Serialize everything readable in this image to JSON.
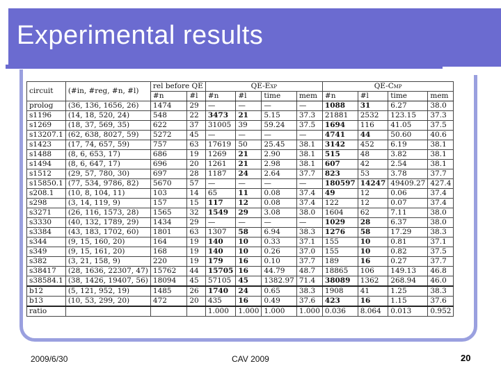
{
  "slide": {
    "title": "Experimental results",
    "date": "2009/6/30",
    "event": "CAV 2009",
    "page": "20"
  },
  "table": {
    "group_headers": [
      "circuit",
      "(#in, #reg, #n, #l)",
      "rel before QE",
      "QE-Exp",
      "QE-Cmp"
    ],
    "sub_headers": [
      "#n",
      "#l",
      "#n",
      "#l",
      "time",
      "mem",
      "#n",
      "#l",
      "time",
      "mem"
    ],
    "rows": [
      {
        "cells": [
          "prolog",
          "(36, 136, 1656, 26)",
          "1474",
          "29",
          "—",
          "—",
          "—",
          "—",
          "1088",
          "31",
          "6.27",
          "38.0"
        ],
        "bold": [
          8,
          9
        ]
      },
      {
        "cells": [
          "s1196",
          "(14, 18, 520, 24)",
          "548",
          "22",
          "3473",
          "21",
          "5.15",
          "37.3",
          "21881",
          "2532",
          "123.15",
          "37.3"
        ],
        "bold": [
          4,
          5
        ]
      },
      {
        "cells": [
          "s1269",
          "(18, 37, 569, 35)",
          "622",
          "37",
          "31005",
          "39",
          "59.24",
          "37.5",
          "1694",
          "116",
          "41.05",
          "37.5"
        ],
        "bold": [
          8
        ]
      },
      {
        "cells": [
          "s13207.1",
          "(62, 638, 8027, 59)",
          "5272",
          "45",
          "—",
          "—",
          "—",
          "—",
          "4741",
          "44",
          "50.60",
          "40.6"
        ],
        "bold": [
          8,
          9
        ]
      },
      {
        "cells": [
          "s1423",
          "(17, 74, 657, 59)",
          "757",
          "63",
          "17619",
          "50",
          "25.45",
          "38.1",
          "3142",
          "452",
          "6.19",
          "38.1"
        ],
        "bold": [
          8
        ]
      },
      {
        "cells": [
          "s1488",
          "(8, 6, 653, 17)",
          "686",
          "19",
          "1269",
          "21",
          "2.90",
          "38.1",
          "515",
          "48",
          "3.82",
          "38.1"
        ],
        "bold": [
          5,
          8
        ]
      },
      {
        "cells": [
          "s1494",
          "(8, 6, 647, 17)",
          "696",
          "20",
          "1261",
          "21",
          "2.98",
          "38.1",
          "607",
          "42",
          "2.54",
          "38.1"
        ],
        "bold": [
          5,
          8
        ]
      },
      {
        "cells": [
          "s1512",
          "(29, 57, 780, 30)",
          "697",
          "28",
          "1187",
          "24",
          "2.64",
          "37.7",
          "823",
          "53",
          "3.78",
          "37.7"
        ],
        "bold": [
          5,
          8
        ]
      },
      {
        "cells": [
          "s15850.1",
          "(77, 534, 9786, 82)",
          "5670",
          "57",
          "—",
          "—",
          "—",
          "—",
          "180597",
          "14247",
          "49409.27",
          "427.4"
        ],
        "bold": [
          8,
          9
        ]
      },
      {
        "cells": [
          "s208.1",
          "(10, 8, 104, 11)",
          "103",
          "14",
          "65",
          "11",
          "0.08",
          "37.4",
          "49",
          "12",
          "0.06",
          "37.4"
        ],
        "bold": [
          5,
          8
        ]
      },
      {
        "cells": [
          "s298",
          "(3, 14, 119, 9)",
          "157",
          "15",
          "117",
          "12",
          "0.08",
          "37.4",
          "122",
          "12",
          "0.07",
          "37.4"
        ],
        "bold": [
          4,
          5
        ]
      },
      {
        "cells": [
          "s3271",
          "(26, 116, 1573, 28)",
          "1565",
          "32",
          "1549",
          "29",
          "3.08",
          "38.0",
          "1604",
          "62",
          "7.11",
          "38.0"
        ],
        "bold": [
          4,
          5
        ]
      },
      {
        "cells": [
          "s3330",
          "(40, 132, 1789, 29)",
          "1434",
          "29",
          "—",
          "—",
          "—",
          "—",
          "1029",
          "28",
          "6.37",
          "38.0"
        ],
        "bold": [
          8,
          9
        ]
      },
      {
        "cells": [
          "s3384",
          "(43, 183, 1702, 60)",
          "1801",
          "63",
          "1307",
          "58",
          "6.94",
          "38.3",
          "1276",
          "58",
          "17.29",
          "38.3"
        ],
        "bold": [
          5,
          8,
          9
        ]
      },
      {
        "cells": [
          "s344",
          "(9, 15, 160, 20)",
          "164",
          "19",
          "140",
          "10",
          "0.33",
          "37.1",
          "155",
          "10",
          "0.81",
          "37.1"
        ],
        "bold": [
          4,
          5,
          9
        ]
      },
      {
        "cells": [
          "s349",
          "(9, 15, 161, 20)",
          "168",
          "19",
          "140",
          "10",
          "0.26",
          "37.0",
          "155",
          "10",
          "0.82",
          "37.5"
        ],
        "bold": [
          4,
          5,
          9
        ]
      },
      {
        "cells": [
          "s382",
          "(3, 21, 158, 9)",
          "220",
          "19",
          "179",
          "16",
          "0.10",
          "37.7",
          "189",
          "16",
          "0.27",
          "37.7"
        ],
        "bold": [
          4,
          5,
          9
        ]
      },
      {
        "cells": [
          "s38417",
          "(28, 1636, 22307, 47)",
          "15762",
          "44",
          "15705",
          "16",
          "44.79",
          "48.7",
          "18865",
          "106",
          "149.13",
          "46.8"
        ],
        "bold": [
          4,
          5
        ]
      },
      {
        "cells": [
          "s38584.1",
          "(38, 1426, 19407, 56)",
          "18094",
          "45",
          "57105",
          "45",
          "1382.97",
          "71.4",
          "38089",
          "1362",
          "268.94",
          "46.0"
        ],
        "bold": [
          5,
          8
        ]
      },
      {
        "cells": [
          "b12",
          "(5, 121, 952, 19)",
          "1485",
          "26",
          "1740",
          "24",
          "0.65",
          "38.3",
          "1908",
          "41",
          "1.25",
          "38.3"
        ],
        "bold": [
          4,
          5
        ],
        "sep": true
      },
      {
        "cells": [
          "b13",
          "(10, 53, 299, 20)",
          "472",
          "20",
          "435",
          "16",
          "0.49",
          "37.6",
          "423",
          "16",
          "1.15",
          "37.6"
        ],
        "bold": [
          5,
          8,
          9
        ]
      },
      {
        "cells": [
          "ratio",
          "",
          "",
          "",
          "1.000",
          "1.000",
          "1.000",
          "1.000",
          "0.036",
          "8.064",
          "0.013",
          "0.952"
        ],
        "bold": [],
        "sep": true
      }
    ]
  }
}
